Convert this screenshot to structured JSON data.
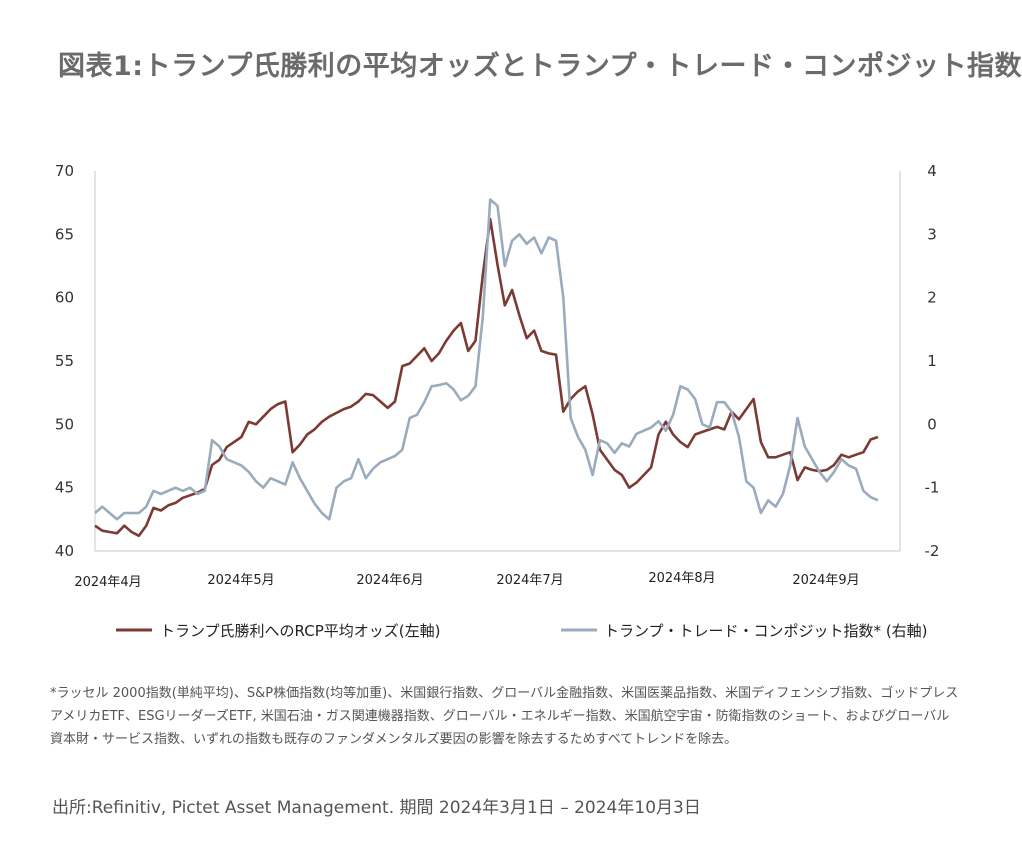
{
  "title": "図表1:トランプ氏勝利の平均オッズとトランプ・トレード・コンポジット指数",
  "chart_data": {
    "type": "line",
    "x_labels": [
      "2024年4月",
      "2024年5月",
      "2024年6月",
      "2024年7月",
      "2024年8月",
      "2024年9月"
    ],
    "y_left": {
      "ticks": [
        "70",
        "65",
        "60",
        "55",
        "50",
        "45",
        "40"
      ],
      "range": [
        40,
        70
      ]
    },
    "y_right": {
      "ticks": [
        "4",
        "3",
        "2",
        "1",
        "0",
        "-1",
        "-2"
      ],
      "range": [
        -2,
        4
      ]
    },
    "colors": {
      "rcp": "#7b3a33",
      "composite": "#9aabbd"
    },
    "series": [
      {
        "name": "トランプ氏勝利へのRCP平均オッズ(左軸)",
        "axis": "left",
        "values": [
          42.0,
          41.6,
          41.5,
          41.4,
          42.0,
          41.5,
          41.2,
          42.0,
          43.4,
          43.2,
          43.6,
          43.8,
          44.2,
          44.4,
          44.6,
          44.9,
          46.8,
          47.2,
          48.2,
          48.6,
          49.0,
          50.2,
          50.0,
          50.6,
          51.2,
          51.6,
          51.8,
          47.8,
          48.4,
          49.2,
          49.6,
          50.2,
          50.6,
          50.9,
          51.2,
          51.4,
          51.8,
          52.4,
          52.3,
          51.8,
          51.3,
          51.8,
          54.6,
          54.8,
          55.4,
          56.0,
          55.0,
          55.6,
          56.6,
          57.4,
          58.0,
          55.8,
          56.6,
          61.8,
          66.2,
          62.6,
          59.4,
          60.6,
          58.6,
          56.8,
          57.4,
          55.8,
          55.6,
          55.5,
          51.0,
          52.0,
          52.6,
          53.0,
          50.8,
          48.0,
          47.2,
          46.4,
          46.0,
          45.0,
          45.4,
          46.0,
          46.6,
          49.2,
          50.2,
          49.2,
          48.6,
          48.2,
          49.2,
          49.4,
          49.6,
          49.8,
          49.6,
          51.0,
          50.4,
          51.2,
          52.0,
          48.6,
          47.4,
          47.4,
          47.6,
          47.8,
          45.6,
          46.6,
          46.4,
          46.3,
          46.4,
          46.8,
          47.6,
          47.4,
          47.6,
          47.8,
          48.8,
          49.0
        ]
      },
      {
        "name": "トランプ・トレード・コンポジット指数* (右軸)",
        "axis": "right",
        "values": [
          -1.4,
          -1.3,
          -1.4,
          -1.5,
          -1.4,
          -1.4,
          -1.4,
          -1.3,
          -1.05,
          -1.1,
          -1.05,
          -1.0,
          -1.05,
          -1.0,
          -1.1,
          -1.05,
          -0.25,
          -0.35,
          -0.55,
          -0.6,
          -0.65,
          -0.75,
          -0.9,
          -1.0,
          -0.85,
          -0.9,
          -0.95,
          -0.6,
          -0.85,
          -1.05,
          -1.25,
          -1.4,
          -1.5,
          -1.0,
          -0.9,
          -0.85,
          -0.55,
          -0.85,
          -0.7,
          -0.6,
          -0.55,
          -0.5,
          -0.4,
          0.1,
          0.15,
          0.35,
          0.6,
          0.62,
          0.65,
          0.55,
          0.38,
          0.45,
          0.6,
          1.7,
          3.55,
          3.45,
          2.5,
          2.9,
          3.0,
          2.85,
          2.95,
          2.7,
          2.95,
          2.9,
          2.0,
          0.1,
          -0.2,
          -0.4,
          -0.8,
          -0.25,
          -0.3,
          -0.45,
          -0.3,
          -0.35,
          -0.15,
          -0.1,
          -0.05,
          0.05,
          -0.1,
          0.15,
          0.6,
          0.55,
          0.4,
          0.0,
          -0.05,
          0.35,
          0.35,
          0.2,
          -0.2,
          -0.9,
          -1.0,
          -1.4,
          -1.2,
          -1.3,
          -1.1,
          -0.65,
          0.1,
          -0.35,
          -0.55,
          -0.75,
          -0.9,
          -0.75,
          -0.55,
          -0.65,
          -0.7,
          -1.05,
          -1.15,
          -1.2
        ]
      }
    ],
    "grid": false,
    "legend_position": "bottom"
  },
  "note": "*ラッセル 2000指数(単純平均)、S&P株価指数(均等加重)、米国銀行指数、グローバル金融指数、米国医薬品指数、米国ディフェンシブ指数、ゴッドプレスアメリカETF、ESGリーダーズETF, 米国石油・ガス関連機器指数、グローバル・エネルギー指数、米国航空宇宙・防衛指数のショート、およびグローバル資本財・サービス指数、いずれの指数も既存のファンダメンタルズ要因の影響を除去するためすべてトレンドを除去。",
  "source": "出所:Refinitiv, Pictet Asset Management. 期間 2024年3月1日 – 2024年10月3日"
}
